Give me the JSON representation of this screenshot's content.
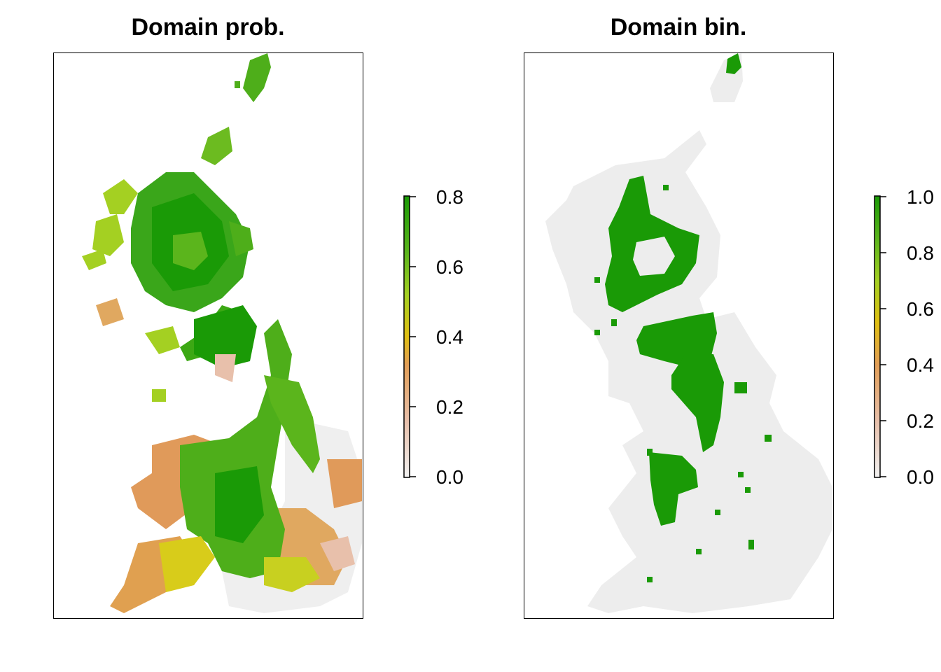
{
  "panels": [
    {
      "title": "Domain prob.",
      "legend_ticks": [
        "0.0",
        "0.2",
        "0.4",
        "0.6",
        "0.8"
      ],
      "legend_range": [
        0,
        0.8
      ]
    },
    {
      "title": "Domain bin.",
      "legend_ticks": [
        "0.0",
        "0.2",
        "0.4",
        "0.6",
        "0.8",
        "1.0"
      ],
      "legend_range": [
        0,
        1.0
      ]
    }
  ],
  "colors": {
    "background_land_bin": "#ededed",
    "presence_bin": "#1a9a06",
    "ramp": [
      "#f2f2f2",
      "#e8c0ab",
      "#e29e57",
      "#e0bf12",
      "#a4d022",
      "#5bb51c",
      "#1a9a06"
    ]
  }
}
